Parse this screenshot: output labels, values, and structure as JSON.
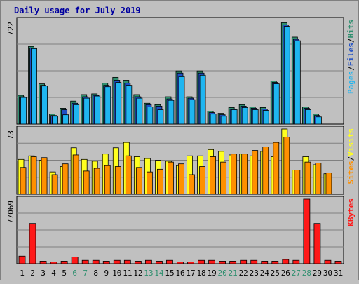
{
  "chart_data": {
    "type": "bar",
    "title": "Daily usage for July 2019",
    "categories": [
      "1",
      "2",
      "3",
      "4",
      "5",
      "6",
      "7",
      "8",
      "9",
      "10",
      "11",
      "12",
      "13",
      "14",
      "15",
      "16",
      "17",
      "18",
      "19",
      "20",
      "21",
      "22",
      "23",
      "24",
      "25",
      "26",
      "27",
      "28",
      "29",
      "30",
      "31"
    ],
    "weekend_days": [
      "6",
      "7",
      "13",
      "14",
      "20",
      "21",
      "27",
      "28"
    ],
    "panels": [
      {
        "id": "pages-files-hits",
        "ymax_label": "722",
        "ylim": [
          0,
          722
        ],
        "legend": [
          "Pages",
          "/",
          "Files",
          "/",
          "Hits"
        ],
        "series": [
          {
            "name": "Hits",
            "color": "#2f8f6f",
            "values": [
              200,
              540,
              280,
              70,
              110,
              160,
              205,
              210,
              285,
              325,
              305,
              205,
              145,
              135,
              190,
              370,
              190,
              370,
              90,
              75,
              115,
              135,
              120,
              115,
              300,
              705,
              605,
              120,
              70,
              0,
              0
            ]
          },
          {
            "name": "Files",
            "color": "#1f4fc4",
            "values": [
              190,
              530,
              270,
              60,
              100,
              145,
              190,
              200,
              270,
              305,
              285,
              190,
              135,
              125,
              175,
              355,
              180,
              355,
              80,
              65,
              105,
              125,
              110,
              105,
              290,
              690,
              590,
              110,
              60,
              0,
              0
            ]
          },
          {
            "name": "Pages",
            "color": "#1fb5f0",
            "values": [
              185,
              525,
              265,
              55,
              65,
              135,
              180,
              195,
              260,
              290,
              270,
              180,
              120,
              100,
              165,
              330,
              170,
              340,
              70,
              55,
              100,
              115,
              100,
              95,
              280,
              680,
              580,
              100,
              50,
              0,
              0
            ]
          }
        ]
      },
      {
        "id": "sites-visits",
        "ymax_label": "73",
        "ylim": [
          0,
          73
        ],
        "legend": [
          "Sites",
          "/",
          "Visits"
        ],
        "series": [
          {
            "name": "Visits",
            "color": "#ffff20",
            "values": [
              39,
              43,
              38,
              25,
              31,
              52,
              39,
              37,
              45,
              52,
              58,
              42,
              40,
              38,
              37,
              32,
              43,
              43,
              50,
              48,
              44,
              45,
              43,
              48,
              42,
              73,
              27,
              42,
              33,
              23,
              0
            ]
          },
          {
            "name": "Sites",
            "color": "#ff9000",
            "values": [
              30,
              42,
              41,
              22,
              34,
              44,
              26,
              29,
              32,
              31,
              43,
              30,
              25,
              28,
              36,
              34,
              22,
              31,
              42,
              36,
              45,
              45,
              49,
              53,
              58,
              64,
              27,
              36,
              35,
              24,
              0
            ]
          }
        ]
      },
      {
        "id": "kbytes",
        "ymax_label": "77069",
        "ylim": [
          0,
          77069
        ],
        "legend": [
          "KBytes"
        ],
        "series": [
          {
            "name": "KBytes",
            "color": "#ff1818",
            "values": [
              9000,
              48000,
              3000,
              2000,
              3000,
              8000,
              4000,
              4000,
              3000,
              4000,
              4000,
              3000,
              4000,
              3000,
              4000,
              2000,
              2000,
              4000,
              4000,
              3000,
              3000,
              4000,
              4000,
              3000,
              3000,
              5000,
              4000,
              77069,
              48000,
              4000,
              3000
            ]
          }
        ]
      }
    ]
  }
}
